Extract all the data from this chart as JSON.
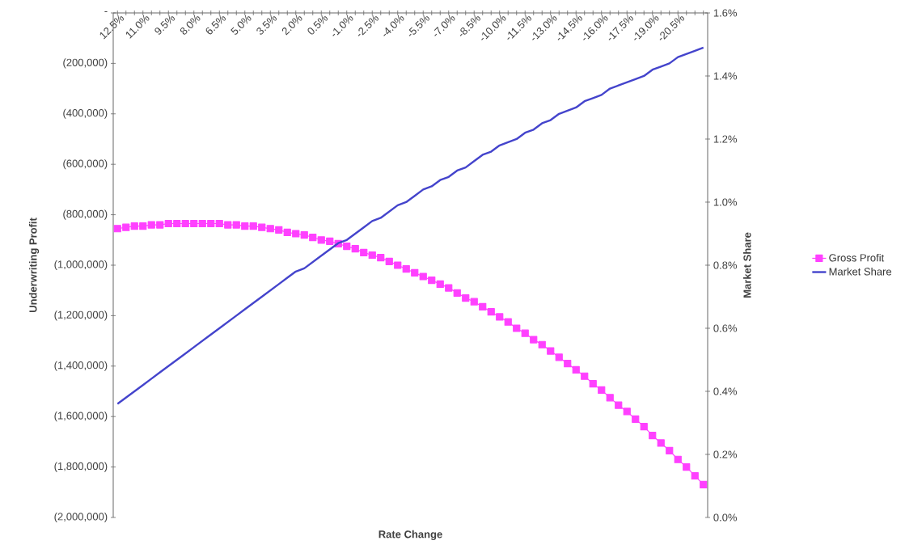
{
  "chart_data": {
    "type": "line",
    "xlabel": "Rate Change",
    "ylabel": "Underwriting Profit",
    "y2label": "Market Share",
    "categories": [
      "12.5%",
      null,
      null,
      "11.0%",
      null,
      null,
      "9.5%",
      null,
      null,
      "8.0%",
      null,
      null,
      "6.5%",
      null,
      null,
      "5.0%",
      null,
      null,
      "3.5%",
      null,
      null,
      "2.0%",
      null,
      null,
      "0.5%",
      null,
      null,
      "-1.0%",
      null,
      null,
      "-2.5%",
      null,
      null,
      "-4.0%",
      null,
      null,
      "-5.5%",
      null,
      null,
      "-7.0%",
      null,
      null,
      "-8.5%",
      null,
      null,
      "-10.0%",
      null,
      null,
      "-11.5%",
      null,
      null,
      "-13.0%",
      null,
      null,
      "-14.5%",
      null,
      null,
      "-16.0%",
      null,
      null,
      "-17.5%",
      null,
      null,
      "-19.0%",
      null,
      null,
      "-20.5%",
      null,
      null,
      null
    ],
    "series": [
      {
        "name": "Gross Profit",
        "color": "#ff40ff",
        "marker": "square",
        "values": [
          -855000,
          -850000,
          -845000,
          -845000,
          -840000,
          -840000,
          -835000,
          -835000,
          -835000,
          -835000,
          -835000,
          -835000,
          -835000,
          -840000,
          -840000,
          -845000,
          -845000,
          -850000,
          -855000,
          -860000,
          -870000,
          -875000,
          -880000,
          -890000,
          -900000,
          -905000,
          -915000,
          -925000,
          -935000,
          -950000,
          -960000,
          -970000,
          -985000,
          -1000000,
          -1015000,
          -1030000,
          -1045000,
          -1060000,
          -1075000,
          -1090000,
          -1110000,
          -1130000,
          -1145000,
          -1165000,
          -1185000,
          -1205000,
          -1225000,
          -1250000,
          -1270000,
          -1295000,
          -1315000,
          -1340000,
          -1365000,
          -1390000,
          -1415000,
          -1440000,
          -1470000,
          -1495000,
          -1525000,
          -1555000,
          -1580000,
          -1610000,
          -1640000,
          -1675000,
          -1705000,
          -1735000,
          -1770000,
          -1800000,
          -1835000,
          -1870000
        ]
      },
      {
        "name": "Market Share",
        "color": "#4444cc",
        "marker": "none",
        "axis": "y2",
        "values": [
          0.36,
          0.38,
          0.4,
          0.42,
          0.44,
          0.46,
          0.48,
          0.5,
          0.52,
          0.54,
          0.56,
          0.58,
          0.6,
          0.62,
          0.64,
          0.66,
          0.68,
          0.7,
          0.72,
          0.74,
          0.76,
          0.78,
          0.79,
          0.81,
          0.83,
          0.85,
          0.87,
          0.88,
          0.9,
          0.92,
          0.94,
          0.95,
          0.97,
          0.99,
          1.0,
          1.02,
          1.04,
          1.05,
          1.07,
          1.08,
          1.1,
          1.11,
          1.13,
          1.15,
          1.16,
          1.18,
          1.19,
          1.2,
          1.22,
          1.23,
          1.25,
          1.26,
          1.28,
          1.29,
          1.3,
          1.32,
          1.33,
          1.34,
          1.36,
          1.37,
          1.38,
          1.39,
          1.4,
          1.42,
          1.43,
          1.44,
          1.46,
          1.47,
          1.48,
          1.49
        ]
      }
    ],
    "ylim": [
      -2000000,
      0
    ],
    "yticks": [
      {
        "value": 0,
        "label": "-"
      },
      {
        "value": -200000,
        "label": "(200,000)"
      },
      {
        "value": -400000,
        "label": "(400,000)"
      },
      {
        "value": -600000,
        "label": "(600,000)"
      },
      {
        "value": -800000,
        "label": "(800,000)"
      },
      {
        "value": -1000000,
        "label": "(1,000,000)"
      },
      {
        "value": -1200000,
        "label": "(1,200,000)"
      },
      {
        "value": -1400000,
        "label": "(1,400,000)"
      },
      {
        "value": -1600000,
        "label": "(1,600,000)"
      },
      {
        "value": -1800000,
        "label": "(1,800,000)"
      },
      {
        "value": -2000000,
        "label": "(2,000,000)"
      }
    ],
    "y2lim": [
      0,
      1.6
    ],
    "y2ticks": [
      {
        "value": 0,
        "label": "0.0%"
      },
      {
        "value": 0.2,
        "label": "0.2%"
      },
      {
        "value": 0.4,
        "label": "0.4%"
      },
      {
        "value": 0.6,
        "label": "0.6%"
      },
      {
        "value": 0.8,
        "label": "0.8%"
      },
      {
        "value": 1.0,
        "label": "1.0%"
      },
      {
        "value": 1.2,
        "label": "1.2%"
      },
      {
        "value": 1.4,
        "label": "1.4%"
      },
      {
        "value": 1.6,
        "label": "1.6%"
      }
    ],
    "grid": false,
    "legend": "right"
  }
}
